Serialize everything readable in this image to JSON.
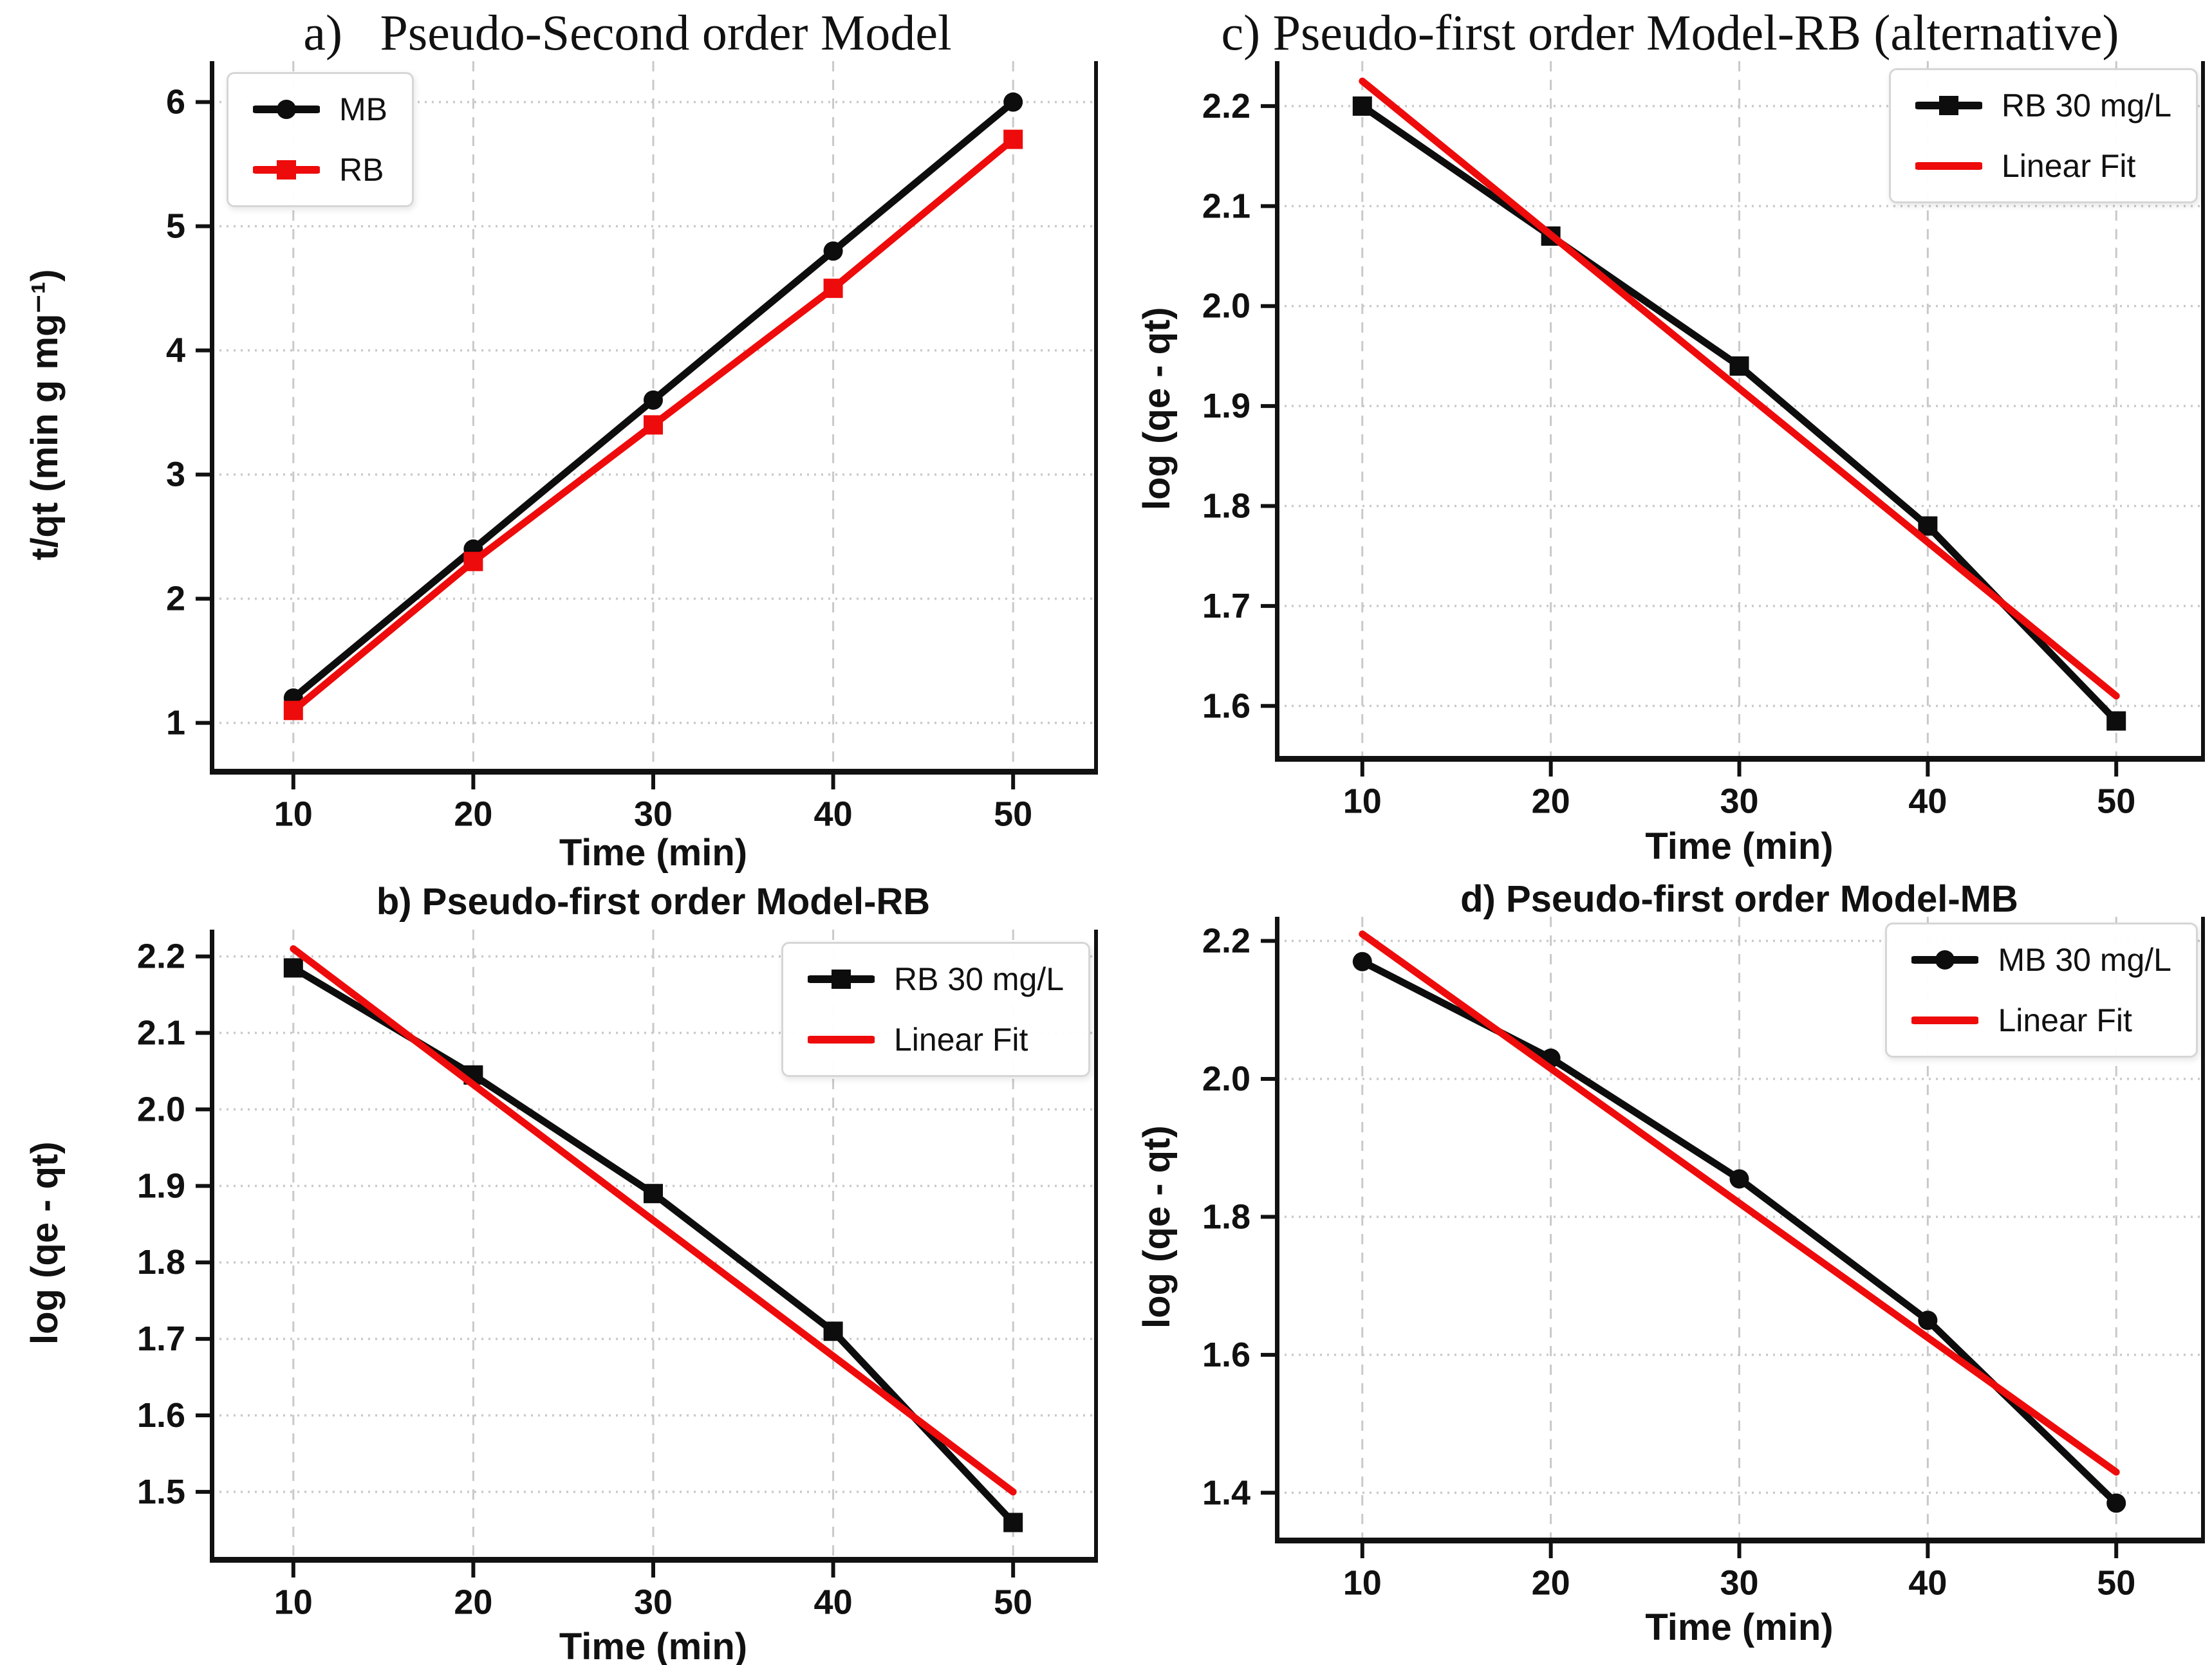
{
  "figure": {
    "background": "#ffffff",
    "series_black": "#0d0d0d",
    "series_red": "#ee0b0b",
    "grid_color": "#c9c9c9",
    "spine_color": "#111111"
  },
  "chart_data": [
    {
      "id": "a",
      "type": "line",
      "title": "a)   Pseudo-Second order Model",
      "title_style": "serif",
      "xlabel": "Time (min)",
      "ylabel": "t/qt (min g mg⁻¹)",
      "xlim": [
        5.5,
        54.5
      ],
      "ylim": [
        0.63,
        6.33
      ],
      "grid": true,
      "legend_loc": "upper-left",
      "xticks": [
        {
          "v": 10,
          "label": "10"
        },
        {
          "v": 20,
          "label": "20"
        },
        {
          "v": 30,
          "label": "30"
        },
        {
          "v": 40,
          "label": "40"
        },
        {
          "v": 50,
          "label": "50"
        }
      ],
      "yticks": [
        {
          "v": 1,
          "label": "1"
        },
        {
          "v": 2,
          "label": "2"
        },
        {
          "v": 3,
          "label": "3"
        },
        {
          "v": 4,
          "label": "4"
        },
        {
          "v": 5,
          "label": "5"
        },
        {
          "v": 6,
          "label": "6"
        }
      ],
      "series": [
        {
          "name": "MB",
          "color": "#0d0d0d",
          "marker": "circle",
          "x": [
            10,
            20,
            30,
            40,
            50
          ],
          "y": [
            1.2,
            2.4,
            3.6,
            4.8,
            6.0
          ]
        },
        {
          "name": "RB",
          "color": "#ee0b0b",
          "marker": "square",
          "x": [
            10,
            20,
            30,
            40,
            50
          ],
          "y": [
            1.1,
            2.3,
            3.4,
            4.5,
            5.7
          ]
        }
      ]
    },
    {
      "id": "b",
      "type": "line",
      "title": "b) Pseudo-first order Model-RB",
      "title_style": "sans",
      "xlabel": "Time (min)",
      "ylabel": "log (qe - qt)",
      "xlim": [
        5.5,
        54.5
      ],
      "ylim": [
        1.415,
        2.235
      ],
      "grid": true,
      "legend_loc": "upper-right",
      "xticks": [
        {
          "v": 10,
          "label": "10"
        },
        {
          "v": 20,
          "label": "20"
        },
        {
          "v": 30,
          "label": "30"
        },
        {
          "v": 40,
          "label": "40"
        },
        {
          "v": 50,
          "label": "50"
        }
      ],
      "yticks": [
        {
          "v": 2.2,
          "label": "2.2"
        },
        {
          "v": 2.1,
          "label": "2.1"
        },
        {
          "v": 2.0,
          "label": "2.0"
        },
        {
          "v": 1.9,
          "label": "1.9"
        },
        {
          "v": 1.8,
          "label": "1.8"
        },
        {
          "v": 1.7,
          "label": "1.7"
        },
        {
          "v": 1.6,
          "label": "1.6"
        },
        {
          "v": 1.5,
          "label": "1.5"
        }
      ],
      "series": [
        {
          "name": "RB 30 mg/L",
          "color": "#0d0d0d",
          "marker": "square",
          "x": [
            10,
            20,
            30,
            40,
            50
          ],
          "y": [
            2.185,
            2.045,
            1.89,
            1.71,
            1.46
          ]
        },
        {
          "name": "Linear Fit",
          "color": "#ee0b0b",
          "marker": "none",
          "x": [
            10,
            50
          ],
          "y": [
            2.21,
            1.5
          ]
        }
      ]
    },
    {
      "id": "c",
      "type": "line",
      "title": "c) Pseudo-first order Model-RB (alternative)",
      "title_style": "serif",
      "xlabel": "Time (min)",
      "ylabel": "log (qe - qt)",
      "xlim": [
        5.5,
        54.5
      ],
      "ylim": [
        1.55,
        2.245
      ],
      "grid": true,
      "legend_loc": "upper-right",
      "xticks": [
        {
          "v": 10,
          "label": "10"
        },
        {
          "v": 20,
          "label": "20"
        },
        {
          "v": 30,
          "label": "30"
        },
        {
          "v": 40,
          "label": "40"
        },
        {
          "v": 50,
          "label": "50"
        }
      ],
      "yticks": [
        {
          "v": 2.2,
          "label": "2.2"
        },
        {
          "v": 2.1,
          "label": "2.1"
        },
        {
          "v": 2.0,
          "label": "2.0"
        },
        {
          "v": 1.9,
          "label": "1.9"
        },
        {
          "v": 1.8,
          "label": "1.8"
        },
        {
          "v": 1.7,
          "label": "1.7"
        },
        {
          "v": 1.6,
          "label": "1.6"
        }
      ],
      "series": [
        {
          "name": "RB 30 mg/L",
          "color": "#0d0d0d",
          "marker": "square",
          "x": [
            10,
            20,
            30,
            40,
            50
          ],
          "y": [
            2.2,
            2.07,
            1.94,
            1.78,
            1.585
          ]
        },
        {
          "name": "Linear Fit",
          "color": "#ee0b0b",
          "marker": "none",
          "x": [
            10,
            50
          ],
          "y": [
            2.225,
            1.61
          ]
        }
      ]
    },
    {
      "id": "d",
      "type": "line",
      "title": "d) Pseudo-first order Model-MB",
      "title_style": "sans",
      "xlabel": "Time (min)",
      "ylabel": "log (qe - qt)",
      "xlim": [
        5.5,
        54.5
      ],
      "ylim": [
        1.335,
        2.235
      ],
      "grid": true,
      "legend_loc": "upper-right",
      "xticks": [
        {
          "v": 10,
          "label": "10"
        },
        {
          "v": 20,
          "label": "20"
        },
        {
          "v": 30,
          "label": "30"
        },
        {
          "v": 40,
          "label": "40"
        },
        {
          "v": 50,
          "label": "50"
        }
      ],
      "yticks": [
        {
          "v": 2.2,
          "label": "2.2"
        },
        {
          "v": 2.0,
          "label": "2.0"
        },
        {
          "v": 1.8,
          "label": "1.8"
        },
        {
          "v": 1.6,
          "label": "1.6"
        },
        {
          "v": 1.4,
          "label": "1.4"
        }
      ],
      "series": [
        {
          "name": "MB 30 mg/L",
          "color": "#0d0d0d",
          "marker": "circle",
          "x": [
            10,
            20,
            30,
            40,
            50
          ],
          "y": [
            2.17,
            2.03,
            1.855,
            1.65,
            1.385
          ]
        },
        {
          "name": "Linear Fit",
          "color": "#ee0b0b",
          "marker": "none",
          "x": [
            10,
            50
          ],
          "y": [
            2.21,
            1.43
          ]
        }
      ]
    }
  ]
}
